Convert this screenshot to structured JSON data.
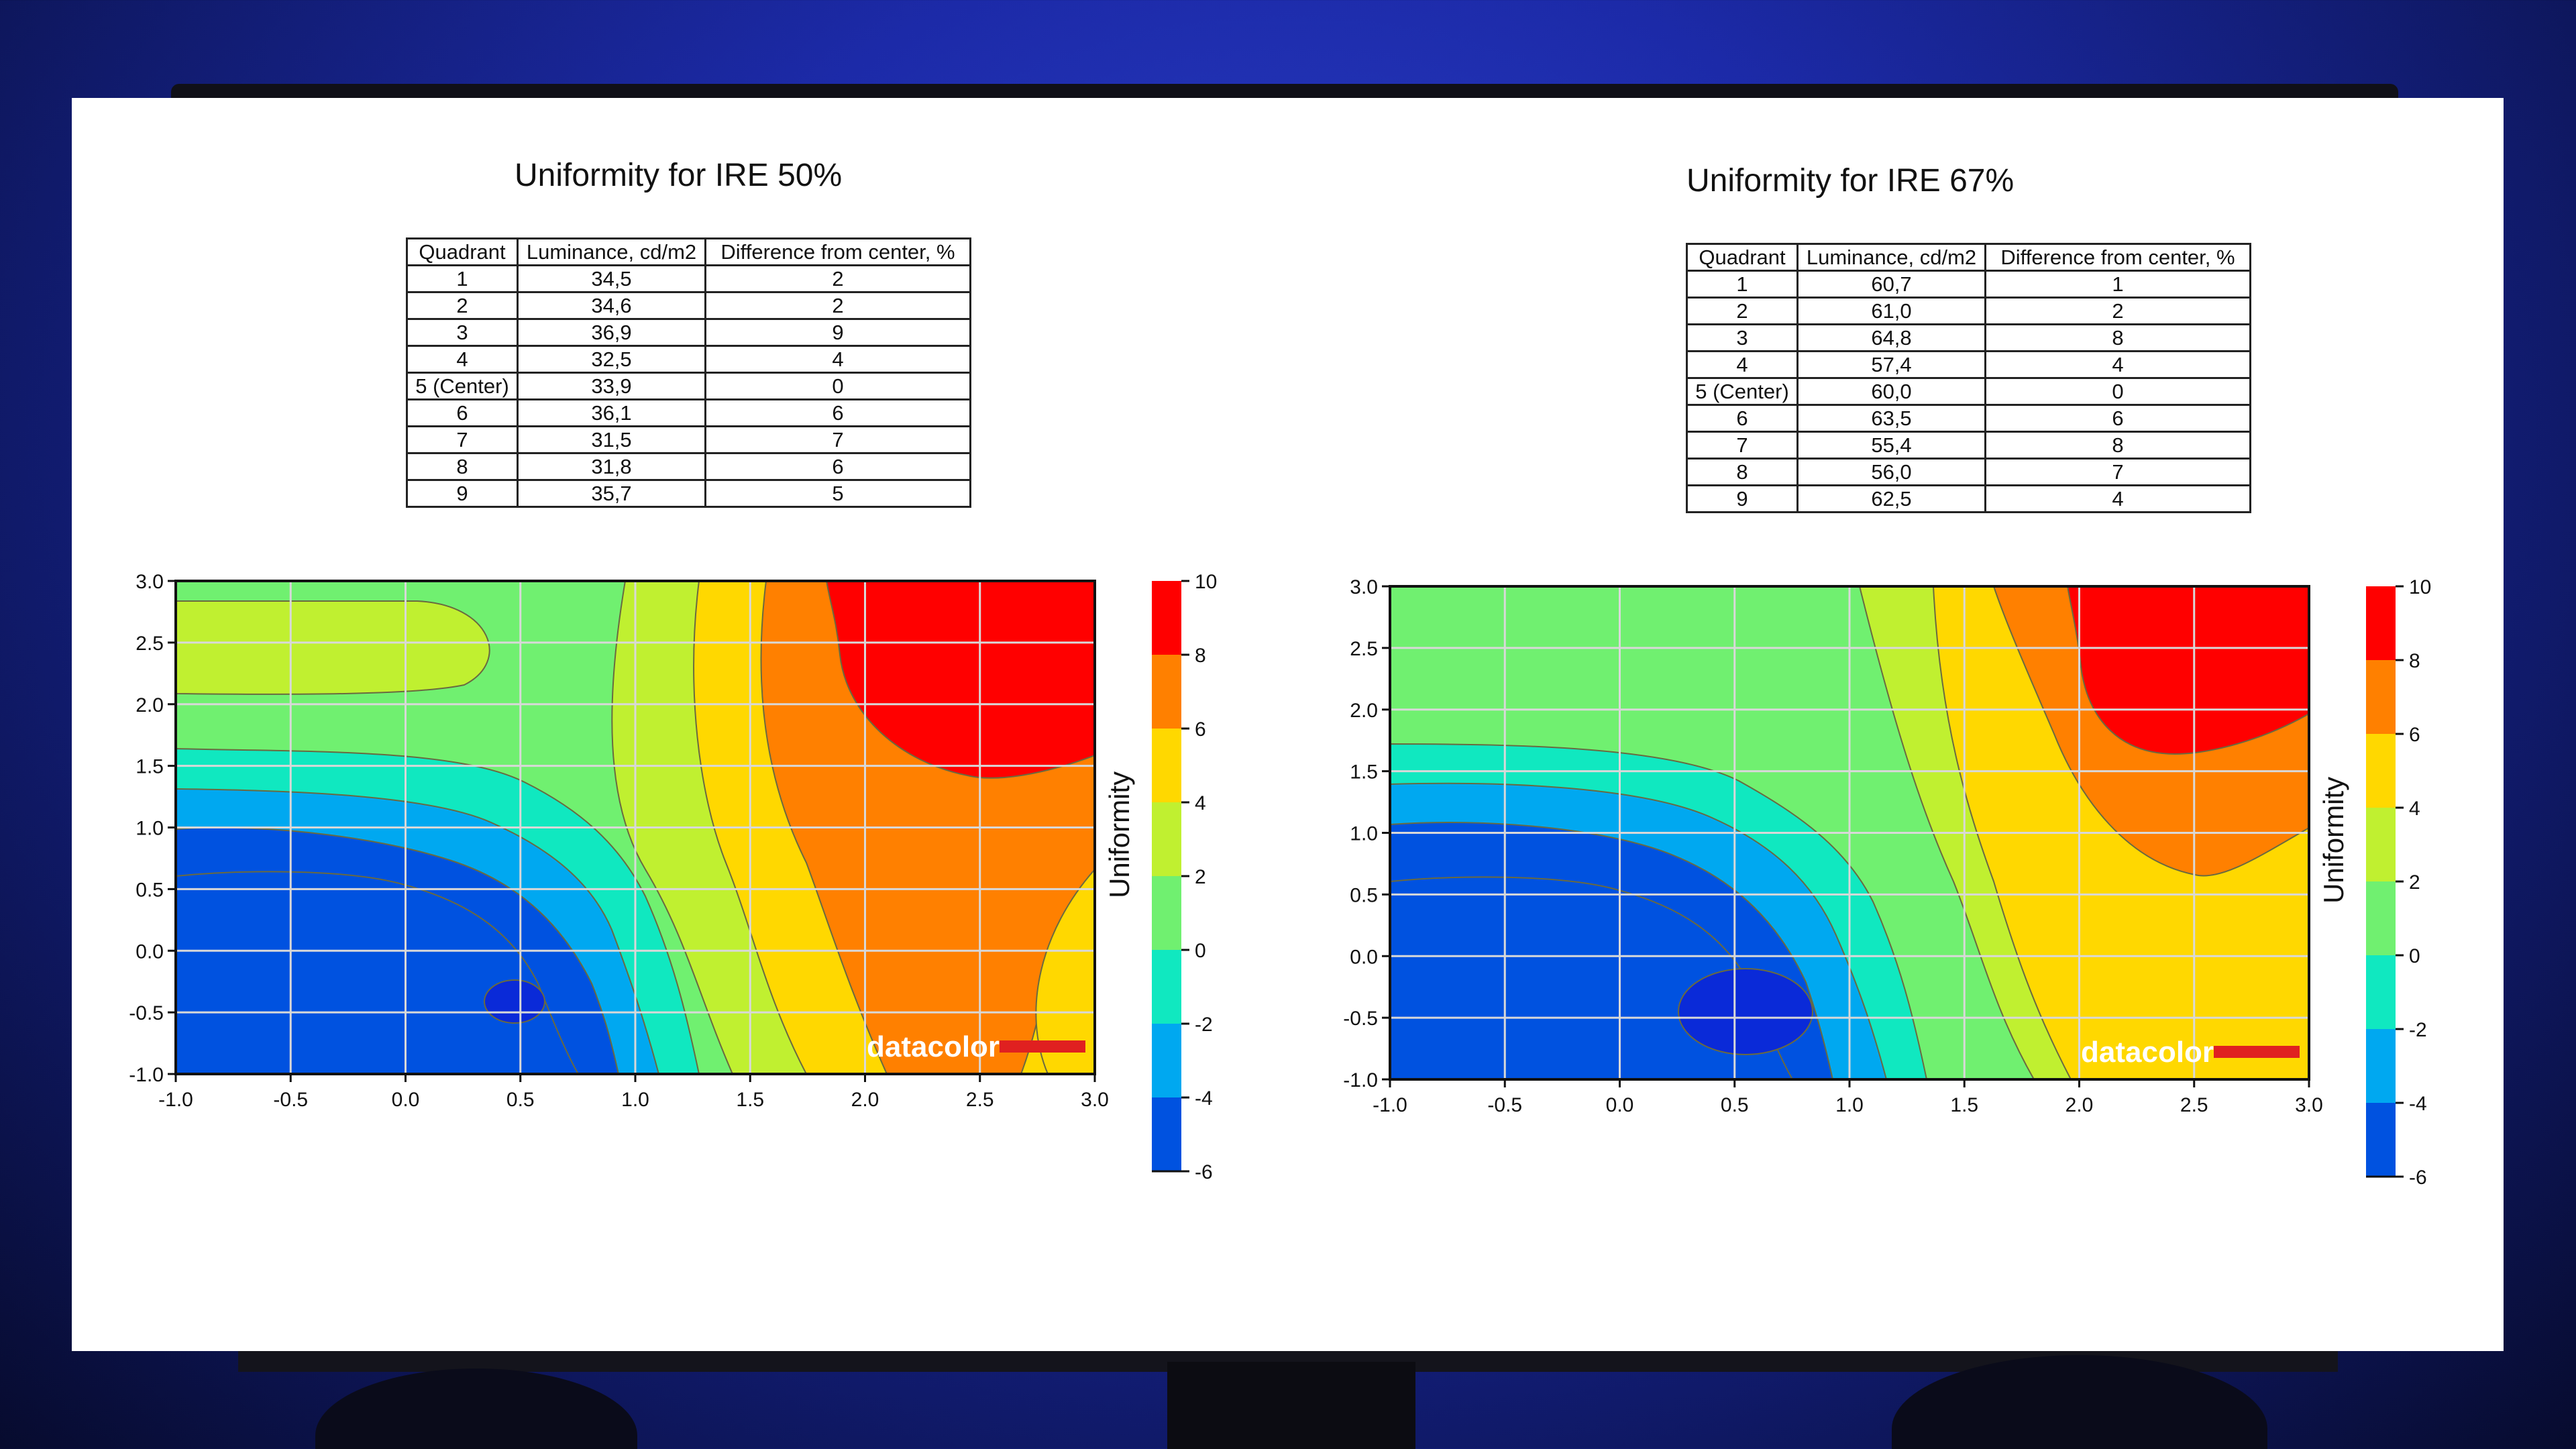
{
  "chart_data": [
    {
      "type": "heatmap",
      "title": "Uniformity for IRE 50%",
      "table": {
        "columns": [
          "Quadrant",
          "Luminance, cd/m2",
          "Difference from center, %"
        ],
        "rows": [
          [
            "1",
            "34,5",
            "2"
          ],
          [
            "2",
            "34,6",
            "2"
          ],
          [
            "3",
            "36,9",
            "9"
          ],
          [
            "4",
            "32,5",
            "4"
          ],
          [
            "5 (Center)",
            "33,9",
            "0"
          ],
          [
            "6",
            "36,1",
            "6"
          ],
          [
            "7",
            "31,5",
            "7"
          ],
          [
            "8",
            "31,8",
            "6"
          ],
          [
            "9",
            "35,7",
            "5"
          ]
        ]
      },
      "x_ticks": [
        "-1.0",
        "-0.5",
        "0.0",
        "0.5",
        "1.0",
        "1.5",
        "2.0",
        "2.5",
        "3.0"
      ],
      "y_ticks": [
        "3.0",
        "2.5",
        "2.0",
        "1.5",
        "1.0",
        "0.5",
        "0.0",
        "-0.5",
        "-1.0"
      ],
      "xlim": [
        -1,
        3
      ],
      "ylim": [
        -1,
        3
      ],
      "grid": true,
      "colorbar": {
        "label": "Uniformity",
        "ticks": [
          "10",
          "8",
          "6",
          "4",
          "2",
          "0",
          "-2",
          "-4",
          "-6"
        ],
        "range": [
          -6,
          10
        ]
      },
      "watermark": "datacolor"
    },
    {
      "type": "heatmap",
      "title": "Uniformity for IRE 67%",
      "table": {
        "columns": [
          "Quadrant",
          "Luminance, cd/m2",
          "Difference from center, %"
        ],
        "rows": [
          [
            "1",
            "60,7",
            "1"
          ],
          [
            "2",
            "61,0",
            "2"
          ],
          [
            "3",
            "64,8",
            "8"
          ],
          [
            "4",
            "57,4",
            "4"
          ],
          [
            "5 (Center)",
            "60,0",
            "0"
          ],
          [
            "6",
            "63,5",
            "6"
          ],
          [
            "7",
            "55,4",
            "8"
          ],
          [
            "8",
            "56,0",
            "7"
          ],
          [
            "9",
            "62,5",
            "4"
          ]
        ]
      },
      "x_ticks": [
        "-1.0",
        "-0.5",
        "0.0",
        "0.5",
        "1.0",
        "1.5",
        "2.0",
        "2.5",
        "3.0"
      ],
      "y_ticks": [
        "3.0",
        "2.5",
        "2.0",
        "1.5",
        "1.0",
        "0.5",
        "0.0",
        "-0.5",
        "-1.0"
      ],
      "xlim": [
        -1,
        3
      ],
      "ylim": [
        -1,
        3
      ],
      "grid": true,
      "colorbar": {
        "label": "Uniformity",
        "ticks": [
          "10",
          "8",
          "6",
          "4",
          "2",
          "0",
          "-2",
          "-4",
          "-6"
        ],
        "range": [
          -6,
          10
        ]
      },
      "watermark": "datacolor"
    }
  ],
  "colors": {
    "band_colors": [
      "#0052e0",
      "#00a8f0",
      "#10e8c0",
      "#70f070",
      "#c0f030",
      "#ffd800",
      "#ff8000",
      "#ff0000"
    ],
    "dark_blue": "#0a2ad8",
    "screen_bg": "#ffffff"
  }
}
